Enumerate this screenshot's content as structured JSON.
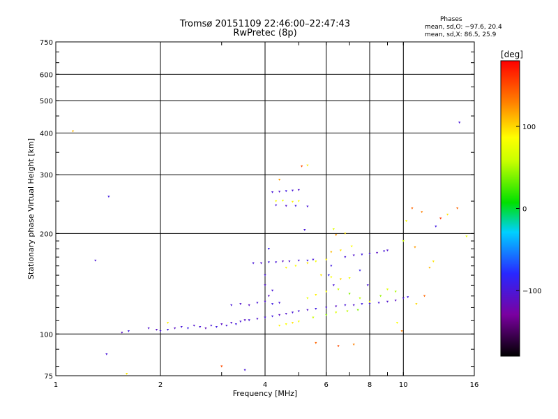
{
  "chart_data": {
    "type": "scatter",
    "title": "Tromsø 20151109 22:46:00–22:47:43",
    "subtitle": "RwPretec (8p)",
    "xlabel": "Frequency [MHz]",
    "ylabel": "Stationary phase Virtual Height [km]",
    "x_scale": "log",
    "y_scale": "log",
    "xlim": [
      1,
      16
    ],
    "ylim": [
      75,
      750
    ],
    "x_ticks": [
      1,
      2,
      4,
      6,
      8,
      10,
      16
    ],
    "x_ticklabels": [
      "1",
      "2",
      "4",
      "6",
      "8",
      "10",
      "16"
    ],
    "y_ticks": [
      75,
      100,
      200,
      300,
      400,
      500,
      600,
      750
    ],
    "y_ticklabels": [
      "75",
      "100",
      "200",
      "300",
      "400",
      "500",
      "600",
      "750"
    ],
    "grid": true,
    "phases": {
      "header": "Phases",
      "line_o": "mean, sd,O: −97.6, 20.4",
      "line_x": "mean, sd,X:  86.5, 25.9"
    },
    "colorbar": {
      "label": "[deg]",
      "range": [
        -180,
        180
      ],
      "ticks": [
        100,
        0,
        -100
      ],
      "ticklabels": [
        "100",
        "0",
        "−100"
      ]
    },
    "series": [
      {
        "points": [
          [
            1.85,
            104,
            -105
          ],
          [
            1.95,
            103,
            -110
          ],
          [
            2.0,
            102,
            -100
          ],
          [
            2.1,
            103,
            -95
          ],
          [
            2.2,
            104,
            -110
          ],
          [
            2.3,
            105,
            -100
          ],
          [
            2.4,
            104,
            -90
          ],
          [
            2.5,
            106,
            -105
          ],
          [
            2.6,
            105,
            -100
          ],
          [
            2.7,
            104,
            -115
          ],
          [
            2.8,
            106,
            -100
          ],
          [
            2.9,
            105,
            -95
          ],
          [
            3.0,
            107,
            -110
          ],
          [
            3.1,
            106,
            -100
          ],
          [
            3.2,
            108,
            -105
          ],
          [
            3.3,
            107,
            -95
          ],
          [
            3.4,
            109,
            -100
          ],
          [
            3.5,
            110,
            -110
          ],
          [
            3.6,
            110,
            -100
          ],
          [
            3.8,
            111,
            -105
          ],
          [
            4.0,
            112,
            -100
          ],
          [
            4.2,
            113,
            -95
          ],
          [
            4.4,
            114,
            -110
          ],
          [
            4.6,
            115,
            -105
          ],
          [
            4.8,
            116,
            -100
          ],
          [
            5.0,
            117,
            -100
          ],
          [
            5.3,
            118,
            -105
          ],
          [
            5.6,
            119,
            -95
          ],
          [
            6.0,
            120,
            -100
          ],
          [
            6.4,
            121,
            -110
          ],
          [
            6.8,
            122,
            -100
          ],
          [
            7.2,
            122,
            -105
          ],
          [
            7.6,
            123,
            -95
          ],
          [
            8.0,
            123,
            -100
          ],
          [
            8.5,
            124,
            -100
          ],
          [
            9.0,
            125,
            -105
          ],
          [
            9.5,
            126,
            -110
          ],
          [
            10.0,
            128,
            -100
          ],
          [
            10.3,
            129,
            -95
          ],
          [
            3.2,
            122,
            -100
          ],
          [
            3.4,
            123,
            -105
          ],
          [
            3.6,
            122,
            -110
          ],
          [
            3.8,
            124,
            -100
          ],
          [
            4.0,
            125,
            -105
          ],
          [
            4.2,
            123,
            -95
          ],
          [
            4.4,
            124,
            -100
          ],
          [
            3.7,
            163,
            -100
          ],
          [
            3.9,
            163,
            -105
          ],
          [
            4.1,
            164,
            -95
          ],
          [
            4.3,
            164,
            -100
          ],
          [
            4.5,
            165,
            -110
          ],
          [
            4.7,
            165,
            -105
          ],
          [
            5.0,
            166,
            -100
          ],
          [
            5.3,
            166,
            -95
          ],
          [
            5.5,
            167,
            -100
          ],
          [
            6.8,
            170,
            -100
          ],
          [
            7.2,
            172,
            -105
          ],
          [
            7.6,
            173,
            -95
          ],
          [
            8.0,
            174,
            -100
          ],
          [
            8.4,
            175,
            -110
          ],
          [
            8.8,
            177,
            -100
          ],
          [
            9.0,
            178,
            -105
          ],
          [
            4.2,
            266,
            -100
          ],
          [
            4.4,
            267,
            -105
          ],
          [
            4.6,
            268,
            -95
          ],
          [
            4.8,
            269,
            -100
          ],
          [
            5.0,
            270,
            -105
          ],
          [
            4.3,
            243,
            -100
          ],
          [
            4.6,
            242,
            -105
          ],
          [
            4.9,
            242,
            -95
          ],
          [
            5.3,
            241,
            -100
          ],
          [
            4.1,
            180,
            -90
          ],
          [
            4.0,
            150,
            -100
          ],
          [
            4.0,
            140,
            -105
          ],
          [
            4.1,
            130,
            -110
          ],
          [
            4.2,
            135,
            -100
          ],
          [
            6.1,
            150,
            -85
          ],
          [
            6.3,
            140,
            -100
          ],
          [
            6.2,
            160,
            -95
          ],
          [
            7.5,
            155,
            -90
          ],
          [
            7.9,
            140,
            -100
          ],
          [
            1.42,
            258,
            -95
          ],
          [
            1.3,
            166,
            -100
          ],
          [
            14.5,
            430,
            -100
          ],
          [
            12.4,
            210,
            -95
          ],
          [
            1.4,
            87,
            -100
          ],
          [
            1.55,
            101,
            -110
          ],
          [
            1.62,
            102,
            -95
          ],
          [
            3.5,
            78,
            -100
          ],
          [
            5.2,
            205,
            -100
          ]
        ]
      },
      {
        "points": [
          [
            4.3,
            250,
            85
          ],
          [
            4.5,
            251,
            80
          ],
          [
            4.8,
            249,
            90
          ],
          [
            5.0,
            250,
            85
          ],
          [
            4.6,
            158,
            90
          ],
          [
            4.9,
            160,
            85
          ],
          [
            5.3,
            163,
            95
          ],
          [
            5.6,
            165,
            80
          ],
          [
            6.0,
            167,
            90
          ],
          [
            5.8,
            150,
            95
          ],
          [
            6.2,
            148,
            85
          ],
          [
            6.6,
            146,
            100
          ],
          [
            7.0,
            147,
            80
          ],
          [
            4.4,
            106,
            90
          ],
          [
            4.6,
            107,
            85
          ],
          [
            4.8,
            108,
            95
          ],
          [
            5.0,
            109,
            80
          ],
          [
            5.3,
            128,
            75
          ],
          [
            5.6,
            131,
            90
          ],
          [
            6.0,
            134,
            85
          ],
          [
            6.5,
            136,
            60
          ],
          [
            7.0,
            132,
            40
          ],
          [
            7.5,
            128,
            55
          ],
          [
            8.0,
            125,
            80
          ],
          [
            8.6,
            130,
            45
          ],
          [
            9.0,
            136,
            70
          ],
          [
            9.5,
            134,
            50
          ],
          [
            5.5,
            112,
            60
          ],
          [
            6.0,
            114,
            45
          ],
          [
            6.4,
            116,
            70
          ],
          [
            6.9,
            117,
            55
          ],
          [
            7.4,
            118,
            40
          ],
          [
            6.4,
            198,
            120
          ],
          [
            6.8,
            200,
            95
          ],
          [
            6.3,
            206,
            70
          ],
          [
            6.2,
            176,
            110
          ],
          [
            6.6,
            178,
            95
          ],
          [
            7.1,
            183,
            85
          ],
          [
            4.4,
            290,
            120
          ],
          [
            5.1,
            318,
            150
          ],
          [
            5.3,
            320,
            95
          ],
          [
            1.12,
            405,
            110
          ],
          [
            1.6,
            76,
            95
          ],
          [
            10.6,
            238,
            140
          ],
          [
            11.3,
            232,
            130
          ],
          [
            12.8,
            222,
            160
          ],
          [
            13.4,
            228,
            95
          ],
          [
            14.3,
            238,
            140
          ],
          [
            15.2,
            196,
            75
          ],
          [
            10.2,
            218,
            85
          ],
          [
            10.8,
            182,
            120
          ],
          [
            11.9,
            158,
            110
          ],
          [
            12.2,
            165,
            95
          ],
          [
            11.5,
            130,
            140
          ],
          [
            10.9,
            123,
            100
          ],
          [
            9.9,
            102,
            130
          ],
          [
            9.6,
            108,
            85
          ],
          [
            7.2,
            93,
            130
          ],
          [
            6.5,
            92,
            150
          ],
          [
            5.6,
            94,
            140
          ],
          [
            2.1,
            108,
            90
          ],
          [
            3.0,
            80,
            150
          ],
          [
            10.0,
            190,
            60
          ]
        ]
      }
    ]
  }
}
